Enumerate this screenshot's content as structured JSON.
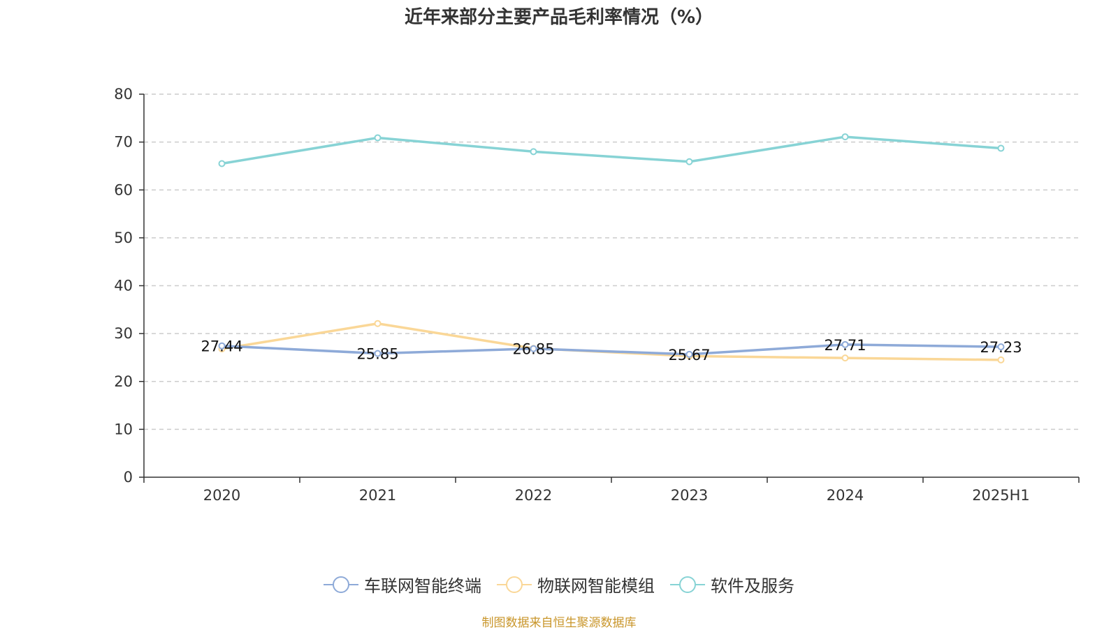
{
  "chart_data": {
    "type": "line",
    "title": "近年来部分主要产品毛利率情况（%）",
    "categories": [
      "2020",
      "2021",
      "2022",
      "2023",
      "2024",
      "2025H1"
    ],
    "y_ticks": [
      "0",
      "10",
      "20",
      "30",
      "40",
      "50",
      "60",
      "70",
      "80"
    ],
    "ylim": [
      0,
      80
    ],
    "grid": true,
    "legend_position": "bottom",
    "series": [
      {
        "name": "车联网智能终端",
        "color": "#8eaad8",
        "values": [
          27.44,
          25.85,
          26.85,
          25.67,
          27.71,
          27.23
        ],
        "data_labels": [
          "27.44",
          "25.85",
          "26.85",
          "25.67",
          "27.71",
          "27.23"
        ]
      },
      {
        "name": "物联网智能模组",
        "color": "#fad797",
        "values": [
          26.8,
          32.1,
          26.9,
          25.3,
          24.9,
          24.5
        ]
      },
      {
        "name": "软件及服务",
        "color": "#87d3d5",
        "values": [
          65.5,
          70.9,
          68.0,
          65.9,
          71.1,
          68.7
        ]
      }
    ]
  },
  "source_note": "制图数据来自恒生聚源数据库"
}
